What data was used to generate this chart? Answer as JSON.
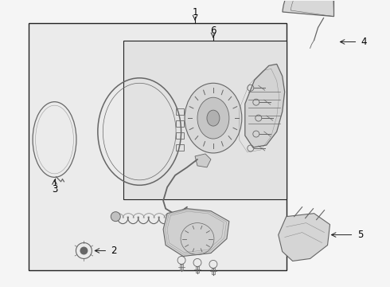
{
  "bg_color": "#f5f5f5",
  "box_fill": "#ebebeb",
  "inner_fill": "#e2e2e2",
  "line_color": "#666666",
  "dark_line": "#222222",
  "fig_width": 4.9,
  "fig_height": 3.6,
  "dpi": 100,
  "label_fontsize": 8.5
}
